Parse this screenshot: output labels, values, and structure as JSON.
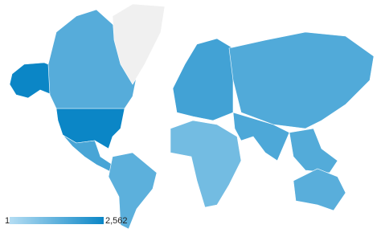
{
  "chart_data": {
    "type": "choropleth",
    "scale": "log",
    "min_color": "#b4ddf3",
    "max_color": "#0b86c6",
    "no_data_color": "#f0f0f0",
    "values": [
      2562,
      80,
      null,
      150,
      60,
      200,
      20,
      100,
      120,
      90,
      70
    ],
    "legend": [
      {
        "value": 1,
        "label": "1"
      },
      {
        "value": 2562,
        "label": "2,562"
      }
    ]
  }
}
